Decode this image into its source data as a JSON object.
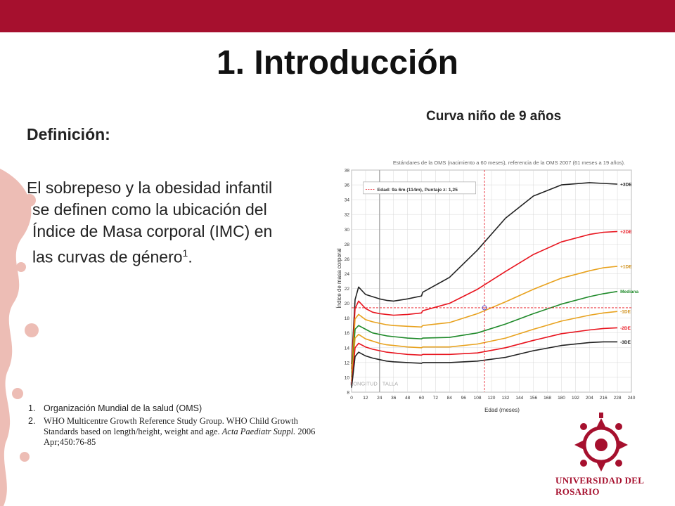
{
  "slide": {
    "title": "1. Introducción",
    "definition_label": "Definición:",
    "body_line1": "El sobrepeso y la obesidad infantil",
    "body_line2": "se definen como la ubicación del",
    "body_line3": "Índice de Masa corporal (IMC) en",
    "body_line4": "las curvas de género",
    "body_sup": "1",
    "body_end": ".",
    "chart_caption": "Curva niño de 9 años",
    "references": [
      {
        "num": "1.",
        "text": "Organización Mundial de la salud (OMS)"
      },
      {
        "num": "2.",
        "text_plain": "WHO Multicentre Growth Reference Study Group. WHO Child Growth Standards based on length/height, weight and age.",
        "text_italic": "Acta Paediatr Suppl.",
        "text_tail": "2006 Apr;450:76-85"
      }
    ],
    "logo_text": "UNIVERSIDAD DEL ROSARIO",
    "colors": {
      "brand": "#a6102e"
    }
  },
  "chart_data": {
    "type": "line",
    "title": "Estándares de la OMS (nacimiento a 60 meses), referencia de la OMS 2007 (61 meses a 19 años).",
    "xlabel": "Edad (meses)",
    "ylabel": "Índice de masa corporal",
    "xlim": [
      0,
      240
    ],
    "ylim": [
      8,
      38
    ],
    "xticks": [
      0,
      12,
      24,
      36,
      48,
      60,
      72,
      84,
      96,
      108,
      120,
      132,
      144,
      156,
      168,
      180,
      192,
      204,
      216,
      228,
      240
    ],
    "yticks": [
      8,
      10,
      12,
      14,
      16,
      18,
      20,
      22,
      24,
      26,
      28,
      30,
      32,
      34,
      36,
      38
    ],
    "annotation": "Edad: 9a 6m (114m), Puntaje z: 1,25",
    "marker": {
      "x": 114,
      "y": 19.4
    },
    "region_labels": [
      "LONGITUD",
      "TALLA"
    ],
    "series": [
      {
        "name": "+3DE",
        "color": "#222222",
        "x": [
          0,
          3,
          6,
          12,
          18,
          24,
          30,
          36,
          48,
          60,
          61,
          84,
          108,
          132,
          156,
          180,
          204,
          216,
          228
        ],
        "y": [
          11.8,
          20.5,
          22.2,
          21.2,
          20.9,
          20.6,
          20.4,
          20.3,
          20.6,
          21.0,
          21.5,
          23.5,
          27.2,
          31.5,
          34.5,
          36.0,
          36.3,
          36.2,
          36.1
        ]
      },
      {
        "name": "+2DE",
        "color": "#e8141e",
        "x": [
          0,
          3,
          6,
          12,
          18,
          24,
          30,
          36,
          48,
          60,
          61,
          84,
          108,
          132,
          156,
          180,
          204,
          216,
          228
        ],
        "y": [
          11.1,
          19.3,
          20.3,
          19.3,
          18.8,
          18.6,
          18.5,
          18.4,
          18.5,
          18.7,
          19.0,
          20.0,
          21.9,
          24.3,
          26.6,
          28.3,
          29.3,
          29.6,
          29.7
        ]
      },
      {
        "name": "+1DE",
        "color": "#e8a21e",
        "x": [
          0,
          3,
          6,
          12,
          18,
          24,
          30,
          36,
          48,
          60,
          61,
          84,
          108,
          132,
          156,
          180,
          204,
          216,
          228
        ],
        "y": [
          10.6,
          17.9,
          18.5,
          17.8,
          17.5,
          17.3,
          17.1,
          17.0,
          16.9,
          16.8,
          17.0,
          17.4,
          18.6,
          20.2,
          21.9,
          23.4,
          24.4,
          24.8,
          25.0
        ]
      },
      {
        "name": "Mediana",
        "color": "#1f8a2a",
        "x": [
          0,
          3,
          6,
          12,
          18,
          24,
          30,
          36,
          48,
          60,
          61,
          84,
          108,
          132,
          156,
          180,
          204,
          216,
          228
        ],
        "y": [
          10.0,
          16.5,
          17.0,
          16.5,
          16.0,
          15.8,
          15.6,
          15.5,
          15.3,
          15.2,
          15.3,
          15.4,
          16.0,
          17.2,
          18.6,
          19.9,
          20.9,
          21.3,
          21.6
        ]
      },
      {
        "name": "-1DE",
        "color": "#e8a21e",
        "x": [
          0,
          3,
          6,
          12,
          18,
          24,
          30,
          36,
          48,
          60,
          61,
          84,
          108,
          132,
          156,
          180,
          204,
          216,
          228
        ],
        "y": [
          9.5,
          15.3,
          15.8,
          15.2,
          14.9,
          14.6,
          14.4,
          14.3,
          14.1,
          14.0,
          14.1,
          14.1,
          14.5,
          15.3,
          16.5,
          17.6,
          18.4,
          18.7,
          18.9
        ]
      },
      {
        "name": "-2DE",
        "color": "#e8141e",
        "x": [
          0,
          3,
          6,
          12,
          18,
          24,
          30,
          36,
          48,
          60,
          61,
          84,
          108,
          132,
          156,
          180,
          204,
          216,
          228
        ],
        "y": [
          9.0,
          14.0,
          14.6,
          14.1,
          13.8,
          13.6,
          13.4,
          13.3,
          13.1,
          13.0,
          13.1,
          13.1,
          13.3,
          14.0,
          15.0,
          15.9,
          16.4,
          16.6,
          16.7
        ]
      },
      {
        "name": "-3DE",
        "color": "#222222",
        "x": [
          0,
          3,
          6,
          12,
          18,
          24,
          30,
          36,
          48,
          60,
          61,
          84,
          108,
          132,
          156,
          180,
          204,
          216,
          228
        ],
        "y": [
          8.6,
          12.8,
          13.4,
          12.9,
          12.6,
          12.4,
          12.2,
          12.1,
          12.0,
          11.9,
          12.0,
          12.0,
          12.2,
          12.7,
          13.6,
          14.3,
          14.7,
          14.8,
          14.8
        ]
      }
    ]
  }
}
